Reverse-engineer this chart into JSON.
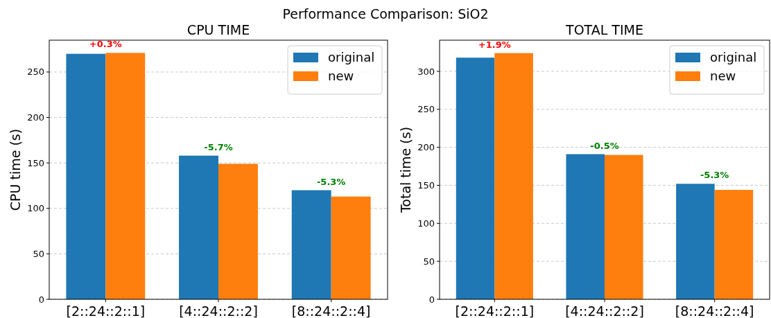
{
  "chart_data": [
    {
      "type": "bar",
      "title": "CPU TIME",
      "ylabel": "CPU time (s)",
      "categories": [
        "[2::24::2::1]",
        "[4::24::2::2]",
        "[8::24::2::4]"
      ],
      "series": [
        {
          "name": "original",
          "color": "#1f77b4",
          "values": [
            270,
            158,
            120
          ]
        },
        {
          "name": "new",
          "color": "#ff7f0e",
          "values": [
            271,
            149,
            113
          ]
        }
      ],
      "ylim": [
        0,
        285
      ],
      "yticks": [
        0,
        50,
        100,
        150,
        200,
        250
      ],
      "grid": "y",
      "legend": "top right",
      "annotations": [
        "Performance Comparison: SiO2",
        {
          "text": "+0.3%",
          "x": "[2::24::2::1]",
          "y": 271
        },
        {
          "text": "-5.7%",
          "x": "[4::24::2::2]",
          "y": 158
        },
        {
          "text": "-5.3%",
          "x": "[8::24::2::4]",
          "y": 120
        }
      ]
    },
    {
      "type": "bar",
      "title": "TOTAL TIME",
      "ylabel": "Total time (s)",
      "categories": [
        "[2::24::2::1]",
        "[4::24::2::2]",
        "[8::24::2::4]"
      ],
      "series": [
        {
          "name": "original",
          "color": "#1f77b4",
          "values": [
            318,
            191,
            152
          ]
        },
        {
          "name": "new",
          "color": "#ff7f0e",
          "values": [
            324,
            190,
            144
          ]
        }
      ],
      "ylim": [
        0,
        341
      ],
      "yticks": [
        0,
        50,
        100,
        150,
        200,
        250,
        300
      ],
      "grid": "y",
      "legend": "top right",
      "annotations": [
        {
          "text": "+1.9%",
          "x": "[2::24::2::1]",
          "y": 324
        },
        {
          "text": "-0.5%",
          "x": "[4::24::2::2]",
          "y": 191
        },
        {
          "text": "-5.3%",
          "x": "[8::24::2::4]",
          "y": 152
        }
      ]
    }
  ]
}
